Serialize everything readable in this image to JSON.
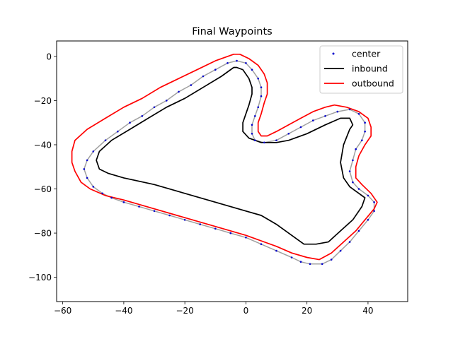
{
  "chart_data": {
    "type": "line",
    "title": "Final Waypoints",
    "xlabel": "",
    "ylabel": "",
    "xlim": [
      -62,
      53
    ],
    "ylim": [
      -111,
      7
    ],
    "xticks": [
      -60,
      -40,
      -20,
      0,
      20,
      40
    ],
    "yticks": [
      0,
      -20,
      -40,
      -60,
      -80,
      -100
    ],
    "xtick_labels": [
      "−60",
      "−40",
      "−20",
      "0",
      "20",
      "40"
    ],
    "ytick_labels": [
      "0",
      "−20",
      "−40",
      "−60",
      "−80",
      "−100"
    ],
    "grid": false,
    "legend": {
      "placement": "top-right",
      "entries": [
        "center",
        "inbound",
        "outbound"
      ]
    },
    "series": [
      {
        "name": "center",
        "kind": "scatter",
        "color": "#0000cc",
        "points": [
          [
            -3,
            -2
          ],
          [
            -6,
            -3
          ],
          [
            -10,
            -6
          ],
          [
            -14,
            -9
          ],
          [
            -18,
            -13
          ],
          [
            -22,
            -16
          ],
          [
            -26,
            -20
          ],
          [
            -30,
            -23
          ],
          [
            -34,
            -27
          ],
          [
            -38,
            -30
          ],
          [
            -42,
            -34
          ],
          [
            -46,
            -38
          ],
          [
            -50,
            -43
          ],
          [
            -52,
            -47
          ],
          [
            -53,
            -51
          ],
          [
            -52,
            -55
          ],
          [
            -50,
            -59
          ],
          [
            -47,
            -62
          ],
          [
            -44,
            -64
          ],
          [
            -40,
            -66
          ],
          [
            -35,
            -68
          ],
          [
            -30,
            -70
          ],
          [
            -25,
            -72
          ],
          [
            -20,
            -74
          ],
          [
            -15,
            -76
          ],
          [
            -10,
            -78
          ],
          [
            -5,
            -80
          ],
          [
            0,
            -82
          ],
          [
            5,
            -85
          ],
          [
            10,
            -88
          ],
          [
            15,
            -91
          ],
          [
            18,
            -93
          ],
          [
            21,
            -94
          ],
          [
            25,
            -94
          ],
          [
            28,
            -92
          ],
          [
            31,
            -88
          ],
          [
            34,
            -84
          ],
          [
            37,
            -79
          ],
          [
            40,
            -74
          ],
          [
            42,
            -70
          ],
          [
            42,
            -66
          ],
          [
            40,
            -63
          ],
          [
            37,
            -60
          ],
          [
            35,
            -57
          ],
          [
            34,
            -52
          ],
          [
            35,
            -47
          ],
          [
            36,
            -42
          ],
          [
            38,
            -38
          ],
          [
            39,
            -34
          ],
          [
            39,
            -30
          ],
          [
            37,
            -26
          ],
          [
            34,
            -24
          ],
          [
            30,
            -25
          ],
          [
            26,
            -27
          ],
          [
            22,
            -29
          ],
          [
            18,
            -32
          ],
          [
            14,
            -35
          ],
          [
            10,
            -38
          ],
          [
            6,
            -39
          ],
          [
            3,
            -38
          ],
          [
            2,
            -35
          ],
          [
            2,
            -31
          ],
          [
            3,
            -27
          ],
          [
            4,
            -23
          ],
          [
            5,
            -18
          ],
          [
            5,
            -14
          ],
          [
            4,
            -10
          ],
          [
            2,
            -6
          ],
          [
            0,
            -3
          ]
        ]
      },
      {
        "name": "",
        "kind": "line",
        "color": "#a0a0a0",
        "points": [
          [
            -3,
            -2
          ],
          [
            -6,
            -3
          ],
          [
            -10,
            -6
          ],
          [
            -14,
            -9
          ],
          [
            -18,
            -13
          ],
          [
            -22,
            -16
          ],
          [
            -26,
            -20
          ],
          [
            -30,
            -23
          ],
          [
            -34,
            -27
          ],
          [
            -38,
            -30
          ],
          [
            -42,
            -34
          ],
          [
            -46,
            -38
          ],
          [
            -50,
            -43
          ],
          [
            -52,
            -47
          ],
          [
            -53,
            -51
          ],
          [
            -52,
            -55
          ],
          [
            -50,
            -59
          ],
          [
            -47,
            -62
          ],
          [
            -44,
            -64
          ],
          [
            -40,
            -66
          ],
          [
            -35,
            -68
          ],
          [
            -30,
            -70
          ],
          [
            -25,
            -72
          ],
          [
            -20,
            -74
          ],
          [
            -15,
            -76
          ],
          [
            -10,
            -78
          ],
          [
            -5,
            -80
          ],
          [
            0,
            -82
          ],
          [
            5,
            -85
          ],
          [
            10,
            -88
          ],
          [
            15,
            -91
          ],
          [
            18,
            -93
          ],
          [
            21,
            -94
          ],
          [
            25,
            -94
          ],
          [
            28,
            -92
          ],
          [
            31,
            -88
          ],
          [
            34,
            -84
          ],
          [
            37,
            -79
          ],
          [
            40,
            -74
          ],
          [
            42,
            -70
          ],
          [
            42,
            -66
          ],
          [
            40,
            -63
          ],
          [
            37,
            -60
          ],
          [
            35,
            -57
          ],
          [
            34,
            -52
          ],
          [
            35,
            -47
          ],
          [
            36,
            -42
          ],
          [
            38,
            -38
          ],
          [
            39,
            -34
          ],
          [
            39,
            -30
          ],
          [
            37,
            -26
          ],
          [
            34,
            -24
          ],
          [
            30,
            -25
          ],
          [
            26,
            -27
          ],
          [
            22,
            -29
          ],
          [
            18,
            -32
          ],
          [
            14,
            -35
          ],
          [
            10,
            -38
          ],
          [
            6,
            -39
          ],
          [
            3,
            -38
          ],
          [
            2,
            -35
          ],
          [
            2,
            -31
          ],
          [
            3,
            -27
          ],
          [
            4,
            -23
          ],
          [
            5,
            -18
          ],
          [
            5,
            -14
          ],
          [
            4,
            -10
          ],
          [
            2,
            -6
          ],
          [
            0,
            -3
          ],
          [
            -3,
            -2
          ]
        ]
      },
      {
        "name": "inbound",
        "kind": "line",
        "color": "#000000",
        "points": [
          [
            -4,
            -5
          ],
          [
            -8,
            -9
          ],
          [
            -14,
            -14
          ],
          [
            -20,
            -19
          ],
          [
            -26,
            -23
          ],
          [
            -32,
            -28
          ],
          [
            -38,
            -33
          ],
          [
            -44,
            -38
          ],
          [
            -48,
            -43
          ],
          [
            -49,
            -47
          ],
          [
            -48,
            -51
          ],
          [
            -45,
            -53
          ],
          [
            -40,
            -55
          ],
          [
            -30,
            -58
          ],
          [
            -20,
            -62
          ],
          [
            -10,
            -66
          ],
          [
            0,
            -70
          ],
          [
            5,
            -72
          ],
          [
            10,
            -76
          ],
          [
            15,
            -81
          ],
          [
            19,
            -85
          ],
          [
            23,
            -85
          ],
          [
            27,
            -84
          ],
          [
            31,
            -79
          ],
          [
            35,
            -74
          ],
          [
            38,
            -68
          ],
          [
            39,
            -64
          ],
          [
            37,
            -62
          ],
          [
            34,
            -59
          ],
          [
            32,
            -55
          ],
          [
            31,
            -48
          ],
          [
            32,
            -40
          ],
          [
            34,
            -33
          ],
          [
            35,
            -31
          ],
          [
            34,
            -28
          ],
          [
            31,
            -28
          ],
          [
            26,
            -31
          ],
          [
            20,
            -35
          ],
          [
            14,
            -38
          ],
          [
            10,
            -39
          ],
          [
            5,
            -39
          ],
          [
            1,
            -37
          ],
          [
            -1,
            -34
          ],
          [
            -1,
            -30
          ],
          [
            0,
            -26
          ],
          [
            1,
            -22
          ],
          [
            2,
            -17
          ],
          [
            2,
            -14
          ],
          [
            1,
            -10
          ],
          [
            -1,
            -6
          ],
          [
            -3,
            -5
          ],
          [
            -4,
            -5
          ]
        ]
      },
      {
        "name": "outbound",
        "kind": "line",
        "color": "#ff0000",
        "points": [
          [
            -4,
            1
          ],
          [
            -10,
            -2
          ],
          [
            -16,
            -6
          ],
          [
            -22,
            -10
          ],
          [
            -28,
            -14
          ],
          [
            -34,
            -19
          ],
          [
            -40,
            -23
          ],
          [
            -46,
            -28
          ],
          [
            -52,
            -33
          ],
          [
            -56,
            -38
          ],
          [
            -57,
            -43
          ],
          [
            -57,
            -48
          ],
          [
            -56,
            -52
          ],
          [
            -54,
            -57
          ],
          [
            -51,
            -60
          ],
          [
            -46,
            -63
          ],
          [
            -40,
            -65
          ],
          [
            -30,
            -69
          ],
          [
            -20,
            -73
          ],
          [
            -10,
            -77
          ],
          [
            0,
            -81
          ],
          [
            10,
            -86
          ],
          [
            15,
            -89
          ],
          [
            20,
            -91
          ],
          [
            24,
            -92
          ],
          [
            28,
            -89
          ],
          [
            32,
            -84
          ],
          [
            36,
            -79
          ],
          [
            39,
            -74
          ],
          [
            42,
            -69
          ],
          [
            43,
            -66
          ],
          [
            41,
            -62
          ],
          [
            38,
            -58
          ],
          [
            36,
            -55
          ],
          [
            36,
            -50
          ],
          [
            37,
            -45
          ],
          [
            39,
            -40
          ],
          [
            41,
            -36
          ],
          [
            41,
            -32
          ],
          [
            40,
            -28
          ],
          [
            37,
            -25
          ],
          [
            33,
            -23
          ],
          [
            29,
            -22
          ],
          [
            26,
            -23
          ],
          [
            22,
            -25
          ],
          [
            18,
            -28
          ],
          [
            14,
            -31
          ],
          [
            10,
            -34
          ],
          [
            7,
            -36
          ],
          [
            5,
            -36
          ],
          [
            4,
            -34
          ],
          [
            4,
            -30
          ],
          [
            5,
            -26
          ],
          [
            6,
            -21
          ],
          [
            7,
            -17
          ],
          [
            7,
            -12
          ],
          [
            6,
            -8
          ],
          [
            4,
            -4
          ],
          [
            1,
            -1
          ],
          [
            -2,
            1
          ],
          [
            -4,
            1
          ]
        ]
      }
    ]
  }
}
